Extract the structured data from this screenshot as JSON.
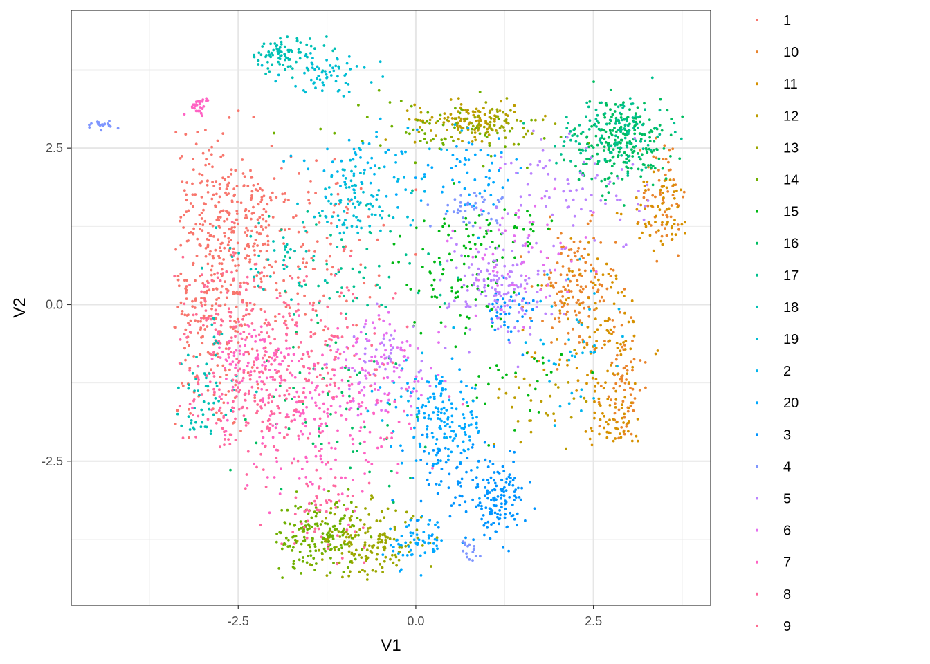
{
  "chart_data": {
    "type": "scatter",
    "title": "",
    "xlabel": "V1",
    "ylabel": "V2",
    "xlim": [
      -4.85,
      4.15
    ],
    "ylim": [
      -4.8,
      4.7
    ],
    "x_ticks": [
      -2.5,
      0.0,
      2.5
    ],
    "x_tick_labels": [
      "-2.5",
      "0.0",
      "2.5"
    ],
    "y_ticks": [
      -2.5,
      0.0,
      2.5
    ],
    "y_tick_labels": [
      "-2.5",
      "0.0",
      "2.5"
    ],
    "grid": true,
    "legend_position": "right",
    "series": [
      {
        "name": "1",
        "color": "#F8766D",
        "clusters": [
          {
            "x": -2.9,
            "y": 0.2,
            "sx": 0.45,
            "sy": 1.2,
            "n": 320
          },
          {
            "x": -2.4,
            "y": 1.3,
            "sx": 0.35,
            "sy": 0.4,
            "n": 120
          },
          {
            "x": -1.5,
            "y": 0.9,
            "sx": 0.5,
            "sy": 0.7,
            "n": 110
          },
          {
            "x": -3.0,
            "y": 2.0,
            "sx": 0.2,
            "sy": 0.5,
            "n": 40
          }
        ]
      },
      {
        "name": "10",
        "color": "#E9842C",
        "clusters": [
          {
            "x": 2.2,
            "y": 0.2,
            "sx": 0.3,
            "sy": 0.5,
            "n": 140
          },
          {
            "x": 2.9,
            "y": -1.3,
            "sx": 0.15,
            "sy": 0.6,
            "n": 70
          },
          {
            "x": 3.5,
            "y": 1.8,
            "sx": 0.15,
            "sy": 0.5,
            "n": 60
          }
        ]
      },
      {
        "name": "11",
        "color": "#D69100",
        "clusters": [
          {
            "x": 2.6,
            "y": -0.6,
            "sx": 0.35,
            "sy": 0.8,
            "n": 120
          },
          {
            "x": 3.5,
            "y": 1.5,
            "sx": 0.25,
            "sy": 0.3,
            "n": 60
          },
          {
            "x": 2.8,
            "y": -1.9,
            "sx": 0.2,
            "sy": 0.25,
            "n": 40
          }
        ]
      },
      {
        "name": "12",
        "color": "#BC9D00",
        "clusters": [
          {
            "x": 0.7,
            "y": 2.95,
            "sx": 0.35,
            "sy": 0.15,
            "n": 110
          },
          {
            "x": 1.8,
            "y": -1.5,
            "sx": 0.4,
            "sy": 0.3,
            "n": 30
          }
        ]
      },
      {
        "name": "13",
        "color": "#9CA700",
        "clusters": [
          {
            "x": -0.7,
            "y": -3.8,
            "sx": 0.4,
            "sy": 0.3,
            "n": 170
          },
          {
            "x": 1.1,
            "y": 2.9,
            "sx": 0.3,
            "sy": 0.15,
            "n": 60
          }
        ]
      },
      {
        "name": "14",
        "color": "#6FB000",
        "clusters": [
          {
            "x": -1.4,
            "y": -3.7,
            "sx": 0.3,
            "sy": 0.3,
            "n": 160
          },
          {
            "x": 0.4,
            "y": 2.8,
            "sx": 0.8,
            "sy": 0.25,
            "n": 60
          }
        ]
      },
      {
        "name": "15",
        "color": "#00B813",
        "clusters": [
          {
            "x": 0.5,
            "y": 0.5,
            "sx": 0.4,
            "sy": 0.5,
            "n": 80
          },
          {
            "x": 1.2,
            "y": 1.1,
            "sx": 0.4,
            "sy": 0.3,
            "n": 40
          },
          {
            "x": 1.5,
            "y": -1.2,
            "sx": 0.4,
            "sy": 0.4,
            "n": 30
          }
        ]
      },
      {
        "name": "16",
        "color": "#00BD61",
        "clusters": [
          {
            "x": 2.9,
            "y": 2.6,
            "sx": 0.35,
            "sy": 0.35,
            "n": 220
          },
          {
            "x": -1.0,
            "y": -1.6,
            "sx": 0.6,
            "sy": 0.6,
            "n": 60
          }
        ]
      },
      {
        "name": "17",
        "color": "#00C08E",
        "clusters": [
          {
            "x": 2.8,
            "y": 2.75,
            "sx": 0.4,
            "sy": 0.3,
            "n": 120
          },
          {
            "x": -1.0,
            "y": 0.5,
            "sx": 0.7,
            "sy": 0.6,
            "n": 60
          }
        ]
      },
      {
        "name": "18",
        "color": "#00C0B4",
        "clusters": [
          {
            "x": -1.85,
            "y": 4.0,
            "sx": 0.3,
            "sy": 0.15,
            "n": 90
          },
          {
            "x": -3.0,
            "y": -1.5,
            "sx": 0.25,
            "sy": 0.6,
            "n": 60
          },
          {
            "x": -2.0,
            "y": 0.7,
            "sx": 0.4,
            "sy": 0.3,
            "n": 40
          }
        ]
      },
      {
        "name": "19",
        "color": "#00BDD4",
        "clusters": [
          {
            "x": -1.2,
            "y": 3.7,
            "sx": 0.35,
            "sy": 0.15,
            "n": 60
          },
          {
            "x": -0.9,
            "y": 1.6,
            "sx": 0.35,
            "sy": 0.35,
            "n": 90
          }
        ]
      },
      {
        "name": "2",
        "color": "#00B5EE",
        "clusters": [
          {
            "x": -0.6,
            "y": 2.2,
            "sx": 0.6,
            "sy": 0.3,
            "n": 60
          },
          {
            "x": 2.2,
            "y": -0.6,
            "sx": 0.3,
            "sy": 0.5,
            "n": 40
          },
          {
            "x": -0.2,
            "y": -1.5,
            "sx": 0.4,
            "sy": 0.4,
            "n": 20
          }
        ]
      },
      {
        "name": "20",
        "color": "#00A8FF",
        "clusters": [
          {
            "x": 0.4,
            "y": -1.9,
            "sx": 0.3,
            "sy": 0.35,
            "n": 150
          },
          {
            "x": 0.0,
            "y": -3.8,
            "sx": 0.2,
            "sy": 0.2,
            "n": 60
          },
          {
            "x": 0.8,
            "y": 2.1,
            "sx": 0.4,
            "sy": 0.3,
            "n": 60
          }
        ]
      },
      {
        "name": "3",
        "color": "#0094FF",
        "clusters": [
          {
            "x": 1.15,
            "y": -3.1,
            "sx": 0.2,
            "sy": 0.3,
            "n": 130
          },
          {
            "x": 0.5,
            "y": -2.8,
            "sx": 0.3,
            "sy": 0.4,
            "n": 60
          },
          {
            "x": 1.3,
            "y": -0.1,
            "sx": 0.2,
            "sy": 0.2,
            "n": 40
          }
        ]
      },
      {
        "name": "4",
        "color": "#7F96FF",
        "clusters": [
          {
            "x": -4.4,
            "y": 2.88,
            "sx": 0.08,
            "sy": 0.03,
            "n": 20
          },
          {
            "x": 0.8,
            "y": 1.55,
            "sx": 0.25,
            "sy": 0.12,
            "n": 40
          },
          {
            "x": 0.7,
            "y": -3.9,
            "sx": 0.1,
            "sy": 0.1,
            "n": 15
          }
        ]
      },
      {
        "name": "5",
        "color": "#BB83FF",
        "clusters": [
          {
            "x": 1.2,
            "y": 0.3,
            "sx": 0.35,
            "sy": 0.4,
            "n": 150
          },
          {
            "x": 2.3,
            "y": 1.8,
            "sx": 0.5,
            "sy": 0.5,
            "n": 80
          },
          {
            "x": -0.5,
            "y": -0.8,
            "sx": 0.3,
            "sy": 0.3,
            "n": 40
          }
        ]
      },
      {
        "name": "6",
        "color": "#E56EF0",
        "clusters": [
          {
            "x": -0.4,
            "y": -1.0,
            "sx": 0.4,
            "sy": 0.4,
            "n": 100
          },
          {
            "x": 1.5,
            "y": 0.8,
            "sx": 0.5,
            "sy": 0.5,
            "n": 60
          }
        ]
      },
      {
        "name": "7",
        "color": "#FF63C4",
        "clusters": [
          {
            "x": -1.3,
            "y": -1.8,
            "sx": 0.6,
            "sy": 0.6,
            "n": 200
          },
          {
            "x": -2.25,
            "y": -0.9,
            "sx": 0.3,
            "sy": 0.3,
            "n": 80
          },
          {
            "x": -3.05,
            "y": 3.2,
            "sx": 0.08,
            "sy": 0.08,
            "n": 30
          }
        ]
      },
      {
        "name": "8",
        "color": "#FF689F",
        "clusters": [
          {
            "x": -2.3,
            "y": -1.4,
            "sx": 0.5,
            "sy": 0.6,
            "n": 200
          },
          {
            "x": -1.3,
            "y": -3.3,
            "sx": 0.3,
            "sy": 0.3,
            "n": 60
          }
        ]
      },
      {
        "name": "9",
        "color": "#FF6C91",
        "clusters": [
          {
            "x": -1.6,
            "y": -0.5,
            "sx": 0.6,
            "sy": 0.6,
            "n": 140
          },
          {
            "x": -2.8,
            "y": 0.0,
            "sx": 0.3,
            "sy": 0.4,
            "n": 60
          }
        ]
      }
    ]
  }
}
